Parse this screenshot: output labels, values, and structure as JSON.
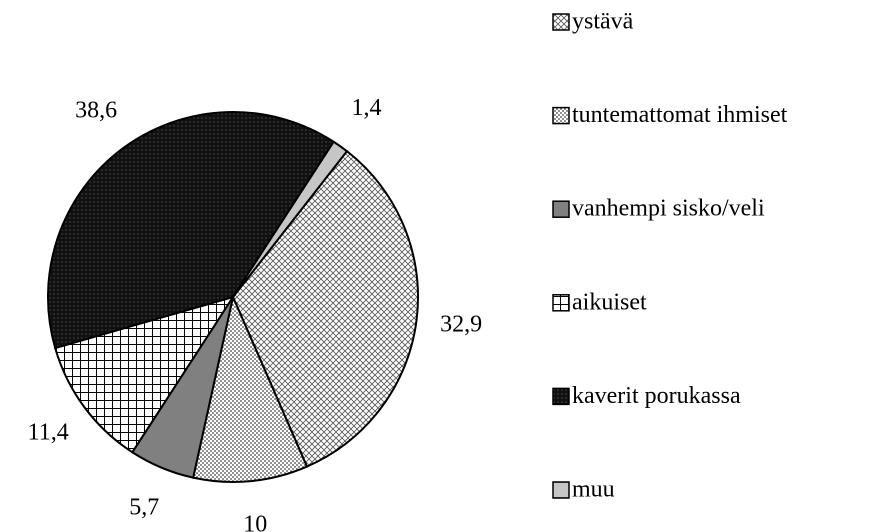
{
  "chart_data": {
    "type": "pie",
    "categories": [
      "ystävä",
      "tuntemattomat ihmiset",
      "vanhempi sisko/veli",
      "aikuiset",
      "kaverit porukassa",
      "muu"
    ],
    "values": [
      32.9,
      10,
      5.7,
      11.4,
      38.6,
      1.4
    ],
    "value_labels": [
      "32,9",
      "10",
      "5,7",
      "11,4",
      "38,6",
      "1,4"
    ],
    "legend": "right"
  }
}
